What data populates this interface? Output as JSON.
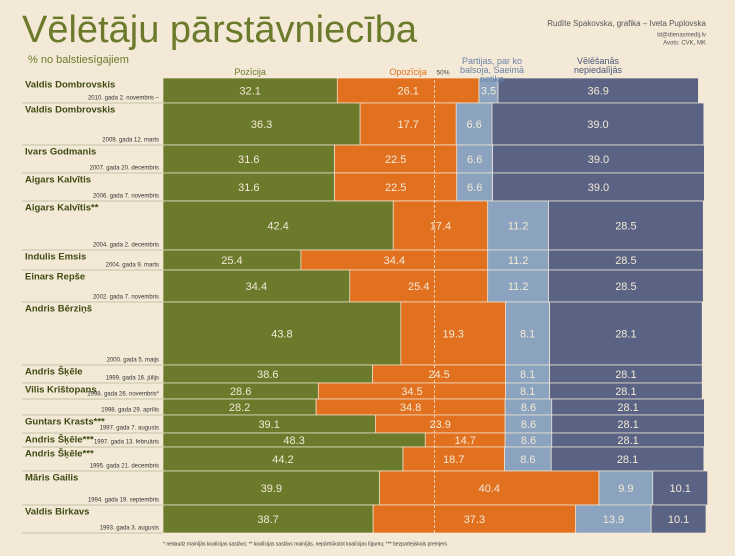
{
  "chart_data": {
    "type": "stacked_bar_horizontal",
    "title": "Vēlētāju pārstāvniecība",
    "subtitle": "% no balstiesīgajiem",
    "credits": [
      "Rudīte Spakovska, grafika – Iveta Puplovska",
      "ld@dienasmedij.lv",
      "Avots: CVK, MK"
    ],
    "footnote": "* nedaudz mainījās koalīcijas sastāvs; ** koalīcijas sastāvs mainījās, nepārtrūkstot koalīcijas līgumu; *** bezpartejiskais premjers",
    "xlim": [
      0,
      100
    ],
    "reference_line": {
      "value": 50,
      "label": "50%"
    },
    "categories": [
      "Valdis Dombrovskis",
      "Valdis Dombrovskis",
      "Ivars Godmanis",
      "Aigars Kalvītis",
      "Aigars Kalvītis**",
      "Indulis Emsis",
      "Einars Repše",
      "Andris Bērziņš",
      "Andris Šķēle",
      "Vilis Krištopans",
      null,
      "Guntars Krasts***",
      "Andris Šķēle***",
      "Andris Šķēle***",
      "Māris Gailis",
      "Valdis Birkavs"
    ],
    "dates": [
      "2010. gada 2. novembris –",
      "2009. gada 12. marts",
      "2007. gada 20. decembris",
      "2006. gada 7. novembris",
      "2004. gada 2. decembris",
      "2004. gada 9. marts",
      "2002. gada 7. novembris",
      "2000. gada 5. maijs",
      "1999. gada 16. jūlijs",
      "1998. gada 26. novembris*",
      "1998. gada 29. aprīlis",
      "1997. gada 7. augusts",
      "1997. gada 13. februāris",
      "1995. gada 21. decembris",
      "1994. gada 19. septembris",
      "1993. gada 3. augusts"
    ],
    "series": [
      {
        "name": "Pozīcija",
        "color": "#6b7a2b",
        "values": [
          32.1,
          36.3,
          31.6,
          31.6,
          42.4,
          25.4,
          34.4,
          43.8,
          38.6,
          28.6,
          28.2,
          39.1,
          48.3,
          44.2,
          39.9,
          38.7
        ],
        "value_labels": [
          "32.1",
          "36.3",
          "31.6",
          "31.6",
          "42.4",
          "25.4",
          "34.4",
          "43.8",
          "38.6",
          "28.6",
          "28.2",
          "39.1",
          "48.3",
          "44.2",
          "39.9",
          "38.7"
        ]
      },
      {
        "name": "Opozīcija",
        "color": "#e2711f",
        "values": [
          26.1,
          17.7,
          22.5,
          22.5,
          17.4,
          34.4,
          25.4,
          19.3,
          24.5,
          34.5,
          34.8,
          23.9,
          14.7,
          18.7,
          40.4,
          37.3
        ],
        "value_labels": [
          "26.1",
          "17.7",
          "22.5",
          "22.5",
          "17.4",
          "34.4",
          "25.4",
          "19.3",
          "24.5",
          "34.5",
          "34.8",
          "23.9",
          "14.7",
          "18.7",
          "40.4",
          "37.3"
        ]
      },
      {
        "name": "Partijas, par ko balsoja, Saeimā netika",
        "color": "#8ba3bf",
        "values": [
          3.5,
          6.6,
          6.6,
          6.6,
          11.2,
          11.2,
          11.2,
          8.1,
          8.1,
          8.1,
          8.6,
          8.6,
          8.6,
          8.6,
          9.9,
          13.9
        ],
        "value_labels": [
          "3.5",
          "6.6",
          "6.6",
          "6.6",
          "11.2",
          "11.2",
          "11.2",
          "8.1",
          "8.1",
          "8.1",
          "8.6",
          "8.6",
          "8.6",
          "8.6",
          "9.9",
          "13.9"
        ]
      },
      {
        "name": "Vēlēšanās nepiedalījās",
        "color": "#5a6384",
        "values": [
          36.9,
          39.0,
          39.0,
          39.0,
          28.5,
          28.5,
          28.5,
          28.1,
          28.1,
          28.1,
          28.1,
          28.1,
          28.1,
          28.1,
          10.1,
          10.1
        ],
        "value_labels": [
          "36.9",
          "39.0",
          "39.0",
          "39.0",
          "28.5",
          "28.5",
          "28.5",
          "28.1",
          "28.1",
          "28.1",
          "28.1",
          "28.1",
          "28.1",
          "28.1",
          "10.1",
          "10.1"
        ]
      }
    ]
  }
}
